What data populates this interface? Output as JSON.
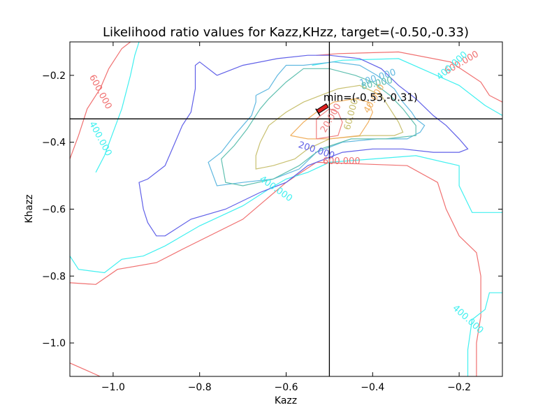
{
  "chart_data": {
    "type": "contour",
    "title": "Likelihood ratio values for Kazz,KHzz, target=(-0.50,-0.33)",
    "xlabel": "Kazz",
    "ylabel": "Khazz",
    "xlim": [
      -1.1,
      -0.1
    ],
    "ylim": [
      -1.1,
      -0.1
    ],
    "xticks": [
      -1.0,
      -0.8,
      -0.6,
      -0.4,
      -0.2
    ],
    "yticks": [
      -1.0,
      -0.8,
      -0.6,
      -0.4,
      -0.2
    ],
    "xtick_labels": [
      "−1.0",
      "−0.8",
      "−0.6",
      "−0.4",
      "−0.2"
    ],
    "ytick_labels": [
      "−1.0",
      "−0.8",
      "−0.6",
      "−0.4",
      "−0.2"
    ],
    "grid": false,
    "target": {
      "x": -0.5,
      "y": -0.33
    },
    "minimum": {
      "x": -0.53,
      "y": -0.31
    },
    "annotation": "min=(-0.53,-0.31)",
    "levels": [
      {
        "value": 20,
        "color": "#f08080"
      },
      {
        "value": 40,
        "color": "#f0b060"
      },
      {
        "value": 60,
        "color": "#c8c070"
      },
      {
        "value": 80,
        "color": "#60c0b0"
      },
      {
        "value": 100,
        "color": "#60b8e0"
      },
      {
        "value": 200,
        "color": "#6060e8"
      },
      {
        "value": 400,
        "color": "#40f0f0"
      },
      {
        "value": 600,
        "color": "#f07070"
      }
    ],
    "contour_labels": [
      {
        "text": "600.000",
        "x": -1.03,
        "y": -0.25,
        "rot": -62,
        "color": "#f07070"
      },
      {
        "text": "400.000",
        "x": -1.03,
        "y": -0.39,
        "rot": -62,
        "color": "#40f0f0"
      },
      {
        "text": "600.000",
        "x": -0.194,
        "y": -0.163,
        "rot": 30,
        "color": "#f07070"
      },
      {
        "text": "400.000",
        "x": -0.216,
        "y": -0.172,
        "rot": 42,
        "color": "#40f0f0"
      },
      {
        "text": "100.000",
        "x": -0.388,
        "y": -0.208,
        "rot": 18,
        "color": "#60b8e0"
      },
      {
        "text": "80.000",
        "x": -0.39,
        "y": -0.225,
        "rot": 12,
        "color": "#60c0b0"
      },
      {
        "text": "40.000",
        "x": -0.396,
        "y": -0.27,
        "rot": 60,
        "color": "#f0b060"
      },
      {
        "text": "60.000",
        "x": -0.449,
        "y": -0.317,
        "rot": 75,
        "color": "#c8c070"
      },
      {
        "text": "20.000",
        "x": -0.496,
        "y": -0.328,
        "rot": 60,
        "color": "#f08080"
      },
      {
        "text": "200.000",
        "x": -0.53,
        "y": -0.425,
        "rot": -18,
        "color": "#6060e8"
      },
      {
        "text": "400.000",
        "x": -0.624,
        "y": -0.54,
        "rot": -35,
        "color": "#40f0f0"
      },
      {
        "text": "600.000",
        "x": -0.472,
        "y": -0.458,
        "rot": 0,
        "color": "#f07070"
      },
      {
        "text": "400.000",
        "x": -0.18,
        "y": -0.93,
        "rot": -42,
        "color": "#40f0f0"
      }
    ],
    "contours": [
      {
        "level": 600,
        "points": [
          [
            -1.1,
            -0.82
          ],
          [
            -1.04,
            -0.825
          ],
          [
            -0.99,
            -0.78
          ],
          [
            -0.9,
            -0.76
          ],
          [
            -0.84,
            -0.72
          ],
          [
            -0.7,
            -0.63
          ],
          [
            -0.6,
            -0.52
          ],
          [
            -0.53,
            -0.46
          ],
          [
            -0.32,
            -0.47
          ],
          [
            -0.25,
            -0.52
          ],
          [
            -0.23,
            -0.6
          ],
          [
            -0.2,
            -0.68
          ],
          [
            -0.16,
            -0.73
          ],
          [
            -0.15,
            -0.8
          ],
          [
            -0.15,
            -0.92
          ],
          [
            -0.16,
            -1.0
          ],
          [
            -0.16,
            -1.1
          ]
        ]
      },
      {
        "level": 600,
        "points": [
          [
            -1.1,
            -1.06
          ],
          [
            -1.03,
            -1.1
          ]
        ]
      },
      {
        "level": 600,
        "points": [
          [
            -0.53,
            -0.14
          ],
          [
            -0.48,
            -0.135
          ],
          [
            -0.34,
            -0.13
          ],
          [
            -0.22,
            -0.16
          ],
          [
            -0.15,
            -0.22
          ],
          [
            -0.13,
            -0.26
          ],
          [
            -0.1,
            -0.28
          ]
        ]
      },
      {
        "level": 600,
        "points": [
          [
            -1.1,
            -0.45
          ],
          [
            -1.08,
            -0.38
          ],
          [
            -1.06,
            -0.3
          ],
          [
            -1.03,
            -0.24
          ],
          [
            -1.01,
            -0.18
          ],
          [
            -0.98,
            -0.12
          ],
          [
            -0.96,
            -0.1
          ]
        ]
      },
      {
        "level": 400,
        "points": [
          [
            -1.1,
            -0.74
          ],
          [
            -1.08,
            -0.78
          ],
          [
            -1.02,
            -0.79
          ],
          [
            -0.98,
            -0.75
          ],
          [
            -0.93,
            -0.74
          ],
          [
            -0.88,
            -0.71
          ],
          [
            -0.8,
            -0.65
          ],
          [
            -0.7,
            -0.59
          ],
          [
            -0.64,
            -0.54
          ],
          [
            -0.6,
            -0.51
          ],
          [
            -0.55,
            -0.49
          ],
          [
            -0.5,
            -0.46
          ],
          [
            -0.3,
            -0.44
          ],
          [
            -0.2,
            -0.47
          ],
          [
            -0.2,
            -0.53
          ],
          [
            -0.17,
            -0.61
          ],
          [
            -0.1,
            -0.61
          ]
        ]
      },
      {
        "level": 400,
        "points": [
          [
            -0.18,
            -1.1
          ],
          [
            -0.18,
            -1.02
          ],
          [
            -0.17,
            -0.93
          ],
          [
            -0.14,
            -0.9
          ],
          [
            -0.13,
            -0.85
          ],
          [
            -0.1,
            -0.85
          ]
        ]
      },
      {
        "level": 400,
        "points": [
          [
            -1.04,
            -0.49
          ],
          [
            -1.02,
            -0.44
          ],
          [
            -1.0,
            -0.37
          ],
          [
            -0.98,
            -0.3
          ],
          [
            -0.97,
            -0.25
          ],
          [
            -0.96,
            -0.2
          ],
          [
            -0.95,
            -0.14
          ],
          [
            -0.94,
            -0.1
          ]
        ]
      },
      {
        "level": 400,
        "points": [
          [
            -0.54,
            -0.17
          ],
          [
            -0.47,
            -0.155
          ],
          [
            -0.34,
            -0.15
          ],
          [
            -0.27,
            -0.19
          ],
          [
            -0.2,
            -0.23
          ],
          [
            -0.14,
            -0.29
          ],
          [
            -0.1,
            -0.32
          ]
        ]
      },
      {
        "level": 200,
        "points": [
          [
            -0.76,
            -0.2
          ],
          [
            -0.7,
            -0.17
          ],
          [
            -0.62,
            -0.15
          ],
          [
            -0.55,
            -0.14
          ],
          [
            -0.5,
            -0.14
          ],
          [
            -0.43,
            -0.15
          ],
          [
            -0.38,
            -0.18
          ],
          [
            -0.34,
            -0.23
          ],
          [
            -0.3,
            -0.27
          ],
          [
            -0.26,
            -0.32
          ],
          [
            -0.23,
            -0.35
          ],
          [
            -0.2,
            -0.39
          ],
          [
            -0.18,
            -0.42
          ],
          [
            -0.2,
            -0.43
          ],
          [
            -0.26,
            -0.43
          ],
          [
            -0.33,
            -0.42
          ],
          [
            -0.4,
            -0.42
          ],
          [
            -0.47,
            -0.43
          ],
          [
            -0.55,
            -0.47
          ],
          [
            -0.6,
            -0.52
          ],
          [
            -0.66,
            -0.55
          ],
          [
            -0.74,
            -0.6
          ],
          [
            -0.82,
            -0.63
          ],
          [
            -0.88,
            -0.68
          ],
          [
            -0.9,
            -0.68
          ],
          [
            -0.92,
            -0.64
          ],
          [
            -0.93,
            -0.6
          ],
          [
            -0.94,
            -0.52
          ],
          [
            -0.92,
            -0.51
          ],
          [
            -0.88,
            -0.47
          ],
          [
            -0.86,
            -0.41
          ],
          [
            -0.84,
            -0.35
          ],
          [
            -0.82,
            -0.31
          ],
          [
            -0.81,
            -0.24
          ],
          [
            -0.81,
            -0.17
          ],
          [
            -0.8,
            -0.16
          ],
          [
            -0.76,
            -0.2
          ]
        ]
      },
      {
        "level": 100,
        "points": [
          [
            -0.67,
            -0.26
          ],
          [
            -0.64,
            -0.24
          ],
          [
            -0.62,
            -0.2
          ],
          [
            -0.6,
            -0.17
          ],
          [
            -0.56,
            -0.17
          ],
          [
            -0.49,
            -0.16
          ],
          [
            -0.43,
            -0.17
          ],
          [
            -0.39,
            -0.2
          ],
          [
            -0.35,
            -0.24
          ],
          [
            -0.33,
            -0.28
          ],
          [
            -0.31,
            -0.31
          ],
          [
            -0.3,
            -0.33
          ],
          [
            -0.28,
            -0.35
          ],
          [
            -0.29,
            -0.37
          ],
          [
            -0.32,
            -0.39
          ],
          [
            -0.39,
            -0.39
          ],
          [
            -0.47,
            -0.4
          ],
          [
            -0.53,
            -0.43
          ],
          [
            -0.57,
            -0.48
          ],
          [
            -0.63,
            -0.51
          ],
          [
            -0.7,
            -0.52
          ],
          [
            -0.76,
            -0.53
          ],
          [
            -0.78,
            -0.46
          ],
          [
            -0.75,
            -0.43
          ],
          [
            -0.72,
            -0.38
          ],
          [
            -0.7,
            -0.35
          ],
          [
            -0.68,
            -0.32
          ],
          [
            -0.67,
            -0.28
          ],
          [
            -0.67,
            -0.26
          ]
        ]
      },
      {
        "level": 80,
        "points": [
          [
            -0.66,
            -0.3
          ],
          [
            -0.64,
            -0.27
          ],
          [
            -0.6,
            -0.22
          ],
          [
            -0.56,
            -0.18
          ],
          [
            -0.5,
            -0.18
          ],
          [
            -0.44,
            -0.2
          ],
          [
            -0.4,
            -0.22
          ],
          [
            -0.36,
            -0.26
          ],
          [
            -0.33,
            -0.3
          ],
          [
            -0.3,
            -0.35
          ],
          [
            -0.3,
            -0.38
          ],
          [
            -0.37,
            -0.39
          ],
          [
            -0.45,
            -0.39
          ],
          [
            -0.52,
            -0.42
          ],
          [
            -0.57,
            -0.47
          ],
          [
            -0.63,
            -0.51
          ],
          [
            -0.7,
            -0.53
          ],
          [
            -0.74,
            -0.52
          ],
          [
            -0.75,
            -0.45
          ],
          [
            -0.72,
            -0.41
          ],
          [
            -0.69,
            -0.36
          ],
          [
            -0.66,
            -0.3
          ]
        ]
      },
      {
        "level": 60,
        "points": [
          [
            -0.64,
            -0.35
          ],
          [
            -0.6,
            -0.31
          ],
          [
            -0.56,
            -0.28
          ],
          [
            -0.52,
            -0.26
          ],
          [
            -0.48,
            -0.24
          ],
          [
            -0.43,
            -0.23
          ],
          [
            -0.38,
            -0.26
          ],
          [
            -0.36,
            -0.3
          ],
          [
            -0.34,
            -0.34
          ],
          [
            -0.33,
            -0.37
          ],
          [
            -0.35,
            -0.38
          ],
          [
            -0.42,
            -0.38
          ],
          [
            -0.5,
            -0.39
          ],
          [
            -0.55,
            -0.42
          ],
          [
            -0.58,
            -0.45
          ],
          [
            -0.63,
            -0.47
          ],
          [
            -0.67,
            -0.48
          ],
          [
            -0.67,
            -0.44
          ],
          [
            -0.66,
            -0.4
          ],
          [
            -0.64,
            -0.35
          ]
        ]
      },
      {
        "level": 40,
        "points": [
          [
            -0.59,
            -0.38
          ],
          [
            -0.56,
            -0.34
          ],
          [
            -0.53,
            -0.31
          ],
          [
            -0.49,
            -0.28
          ],
          [
            -0.44,
            -0.27
          ],
          [
            -0.41,
            -0.28
          ],
          [
            -0.4,
            -0.31
          ],
          [
            -0.41,
            -0.34
          ],
          [
            -0.43,
            -0.38
          ],
          [
            -0.5,
            -0.39
          ],
          [
            -0.55,
            -0.39
          ],
          [
            -0.59,
            -0.38
          ]
        ]
      },
      {
        "level": 20,
        "points": [
          [
            -0.53,
            -0.39
          ],
          [
            -0.53,
            -0.33
          ],
          [
            -0.5,
            -0.3
          ],
          [
            -0.48,
            -0.31
          ],
          [
            -0.47,
            -0.34
          ],
          [
            -0.48,
            -0.38
          ],
          [
            -0.53,
            -0.39
          ]
        ]
      }
    ]
  }
}
